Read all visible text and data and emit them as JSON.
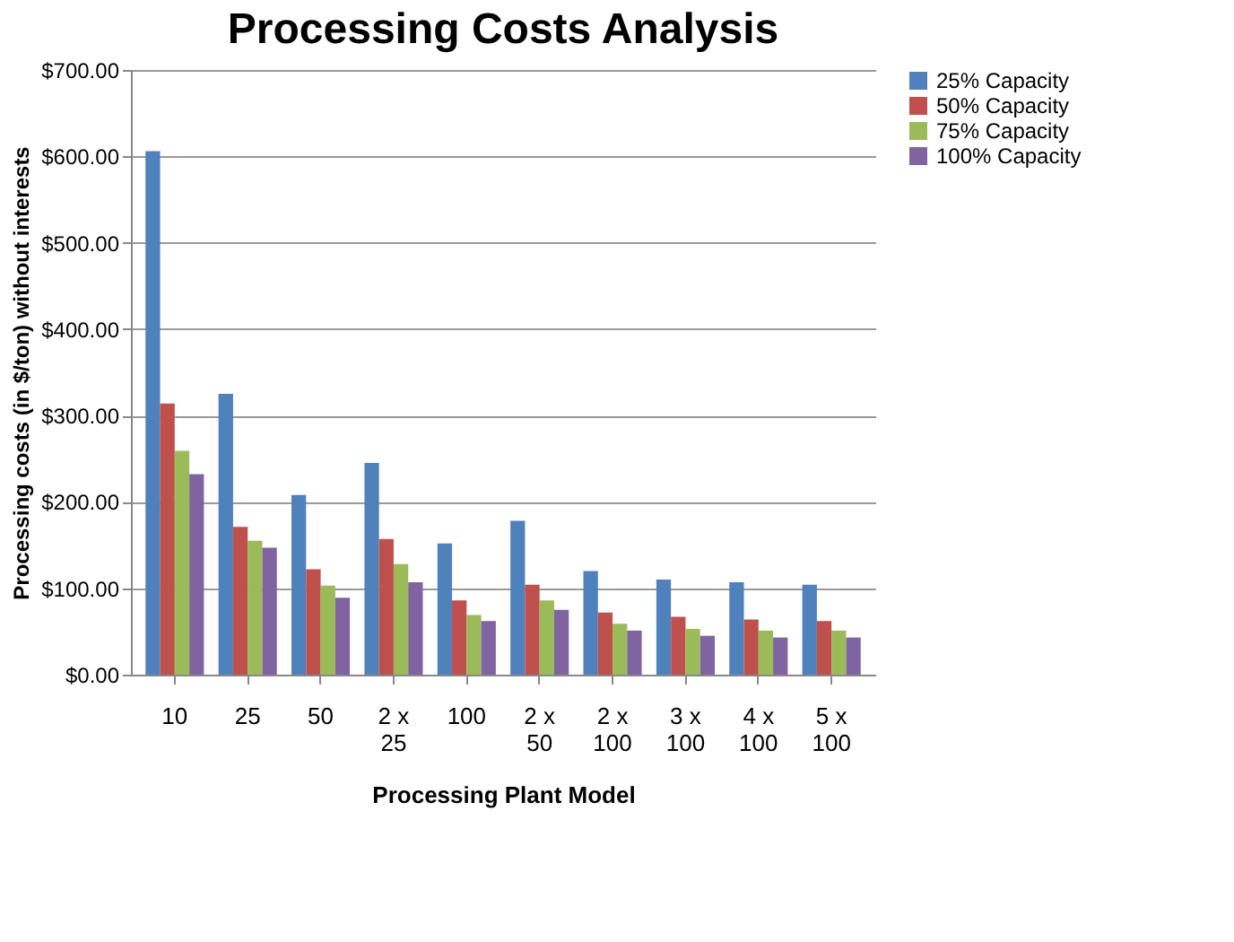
{
  "chart_data": {
    "type": "bar",
    "title": "Processing Costs Analysis",
    "xlabel": "Processing Plant Model",
    "ylabel": "Processing costs  (in $/ton) without interests",
    "categories": [
      "10",
      "25",
      "50",
      "2 x 25",
      "100",
      "2 x 50",
      "2 x 100",
      "3 x 100",
      "4 x 100",
      "5 x 100"
    ],
    "series": [
      {
        "name": "25% Capacity",
        "color": "#4f81bd",
        "values": [
          606,
          325,
          208,
          245,
          152,
          178,
          120,
          110,
          107,
          104
        ]
      },
      {
        "name": "50% Capacity",
        "color": "#c0504d",
        "values": [
          314,
          171,
          122,
          157,
          86,
          104,
          72,
          67,
          64,
          62
        ]
      },
      {
        "name": "75% Capacity",
        "color": "#9bbb59",
        "values": [
          259,
          155,
          103,
          128,
          69,
          86,
          59,
          53,
          51,
          51
        ]
      },
      {
        "name": "100% Capacity",
        "color": "#8064a2",
        "values": [
          232,
          147,
          89,
          107,
          62,
          75,
          51,
          45,
          43,
          43
        ]
      }
    ],
    "ylim": [
      0,
      700
    ],
    "yticks": [
      {
        "value": 0,
        "label": "$0.00"
      },
      {
        "value": 100,
        "label": "$100.00"
      },
      {
        "value": 200,
        "label": "$200.00"
      },
      {
        "value": 300,
        "label": "$300.00"
      },
      {
        "value": 400,
        "label": "$400.00"
      },
      {
        "value": 500,
        "label": "$500.00"
      },
      {
        "value": 600,
        "label": "$600.00"
      },
      {
        "value": 700,
        "label": "$700.00"
      }
    ],
    "grid": "y",
    "legend": "right"
  }
}
